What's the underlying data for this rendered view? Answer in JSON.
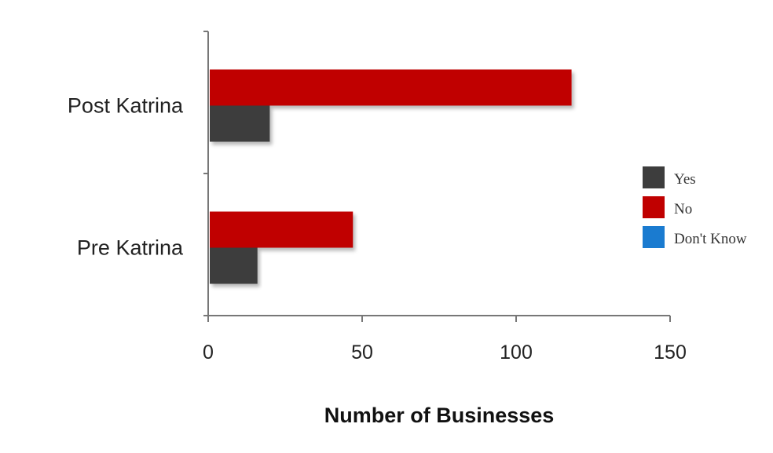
{
  "chart_data": {
    "type": "bar",
    "orientation": "horizontal",
    "categories": [
      "Post Katrina",
      "Pre Katrina"
    ],
    "series": [
      {
        "name": "Yes",
        "color": "#3d3d3d",
        "values": [
          20,
          16
        ]
      },
      {
        "name": "No",
        "color": "#c00000",
        "values": [
          118,
          47
        ]
      },
      {
        "name": "Don't Know",
        "color": "#1a7bd0",
        "values": [
          0,
          0
        ]
      }
    ],
    "xlabel": "Number of Businesses",
    "ylabel": "",
    "xlim": [
      0,
      150
    ],
    "xticks": [
      0,
      50,
      100,
      150
    ],
    "grid": false,
    "legend_position": "right"
  }
}
